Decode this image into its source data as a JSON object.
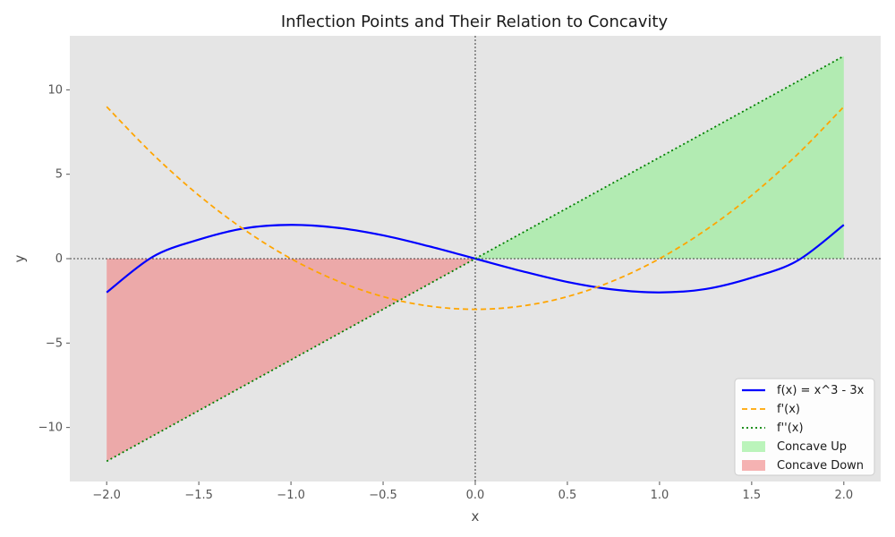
{
  "chart_data": {
    "type": "line",
    "title": "Inflection Points and Their Relation to Concavity",
    "xlabel": "x",
    "ylabel": "y",
    "xlim": [
      -2.2,
      2.2
    ],
    "ylim": [
      -13.2,
      13.2
    ],
    "x_ticks": [
      -2.0,
      -1.5,
      -1.0,
      -0.5,
      0.0,
      0.5,
      1.0,
      1.5,
      2.0
    ],
    "x_tick_labels": [
      "−2.0",
      "−1.5",
      "−1.0",
      "−0.5",
      "0.0",
      "0.5",
      "1.0",
      "1.5",
      "2.0"
    ],
    "y_ticks": [
      -10,
      -5,
      0,
      5,
      10
    ],
    "y_tick_labels": [
      "−10",
      "−5",
      "0",
      "5",
      "10"
    ],
    "grid": false,
    "legend_position": "lower-right",
    "x": [
      -2.0,
      -1.75,
      -1.5,
      -1.25,
      -1.0,
      -0.75,
      -0.5,
      -0.25,
      0.0,
      0.25,
      0.5,
      0.75,
      1.0,
      1.25,
      1.5,
      1.75,
      2.0
    ],
    "series": [
      {
        "name": "f(x) = x^3 - 3x",
        "color": "#0000ff",
        "style": "solid",
        "values": [
          -2.0,
          0.11,
          1.13,
          1.8,
          2.0,
          1.83,
          1.38,
          0.73,
          0.0,
          -0.73,
          -1.38,
          -1.83,
          -2.0,
          -1.8,
          -1.13,
          -0.11,
          2.0
        ]
      },
      {
        "name": "f'(x)",
        "color": "#ffa500",
        "style": "dashed",
        "values": [
          9.0,
          6.19,
          3.75,
          1.69,
          0.0,
          -1.31,
          -2.25,
          -2.81,
          -3.0,
          -2.81,
          -2.25,
          -1.31,
          0.0,
          1.69,
          3.75,
          6.19,
          9.0
        ]
      },
      {
        "name": "f''(x)",
        "color": "#008000",
        "style": "dotted",
        "values": [
          -12.0,
          -10.5,
          -9.0,
          -7.5,
          -6.0,
          -4.5,
          -3.0,
          -1.5,
          0.0,
          1.5,
          3.0,
          4.5,
          6.0,
          7.5,
          9.0,
          10.5,
          12.0
        ]
      }
    ],
    "fills": [
      {
        "name": "Concave Up",
        "color": "#90ee90",
        "x": [
          0.0,
          2.0
        ],
        "baseline": 0,
        "top_values": [
          0.0,
          12.0
        ]
      },
      {
        "name": "Concave Down",
        "color": "#f08080",
        "x": [
          -2.0,
          0.0
        ],
        "baseline": 0,
        "top_values": [
          -12.0,
          0.0
        ]
      }
    ],
    "reference_lines": [
      {
        "orientation": "horizontal",
        "value": 0
      },
      {
        "orientation": "vertical",
        "value": 0
      }
    ]
  }
}
